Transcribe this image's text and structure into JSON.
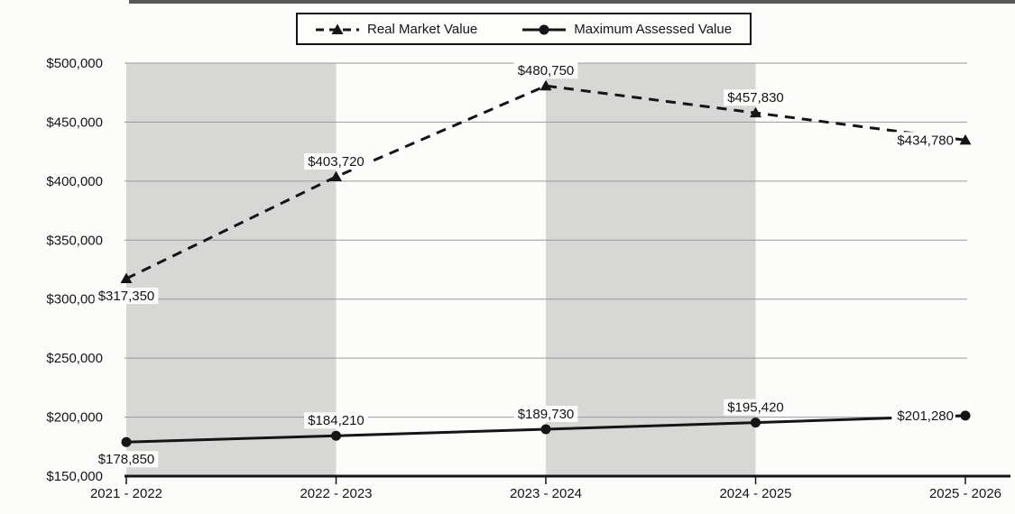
{
  "legend": {
    "position": "top-center",
    "items": [
      {
        "label": "Real Market Value",
        "line": "dashed",
        "marker": "triangle"
      },
      {
        "label": "Maximum Assessed Value",
        "line": "solid",
        "marker": "circle"
      }
    ]
  },
  "chart_data": {
    "type": "line",
    "title": "",
    "xlabel": "",
    "ylabel": "",
    "categories": [
      "2021 - 2022",
      "2022 - 2023",
      "2023 - 2024",
      "2024 - 2025",
      "2025 - 2026"
    ],
    "series": [
      {
        "name": "Real Market Value",
        "values": [
          317350,
          403720,
          480750,
          457830,
          434780
        ],
        "labels": [
          "$317,350",
          "$403,720",
          "$480,750",
          "$457,830",
          "$434,780"
        ],
        "label_positions": [
          "below",
          "above",
          "above",
          "above",
          "left"
        ],
        "line": "dashed",
        "marker": "triangle"
      },
      {
        "name": "Maximum Assessed Value",
        "values": [
          178850,
          184210,
          189730,
          195420,
          201280
        ],
        "labels": [
          "$178,850",
          "$184,210",
          "$189,730",
          "$195,420",
          "$201,280"
        ],
        "label_positions": [
          "below",
          "above",
          "above",
          "above",
          "left"
        ],
        "line": "solid",
        "marker": "circle"
      }
    ],
    "y_ticks": [
      {
        "value": 500000,
        "label": "$500,000"
      },
      {
        "value": 450000,
        "label": "$450,000"
      },
      {
        "value": 400000,
        "label": "$400,000"
      },
      {
        "value": 350000,
        "label": "$350,000"
      },
      {
        "value": 300000,
        "label": "$300,000"
      },
      {
        "value": 250000,
        "label": "$250,000"
      },
      {
        "value": 200000,
        "label": "$200,000"
      },
      {
        "value": 150000,
        "label": "$150,000"
      }
    ],
    "ylim": [
      150000,
      500000
    ],
    "grid": "horizontal",
    "plot_band_category_spans": [
      [
        0,
        1
      ],
      [
        2,
        3
      ]
    ],
    "legend_position": "top"
  },
  "colors": {
    "ink": "#151515",
    "grid": "#9a9a9a",
    "band": "#d7d7d6",
    "background": "#fcfcfb",
    "label_box": "#fdfdfc"
  }
}
